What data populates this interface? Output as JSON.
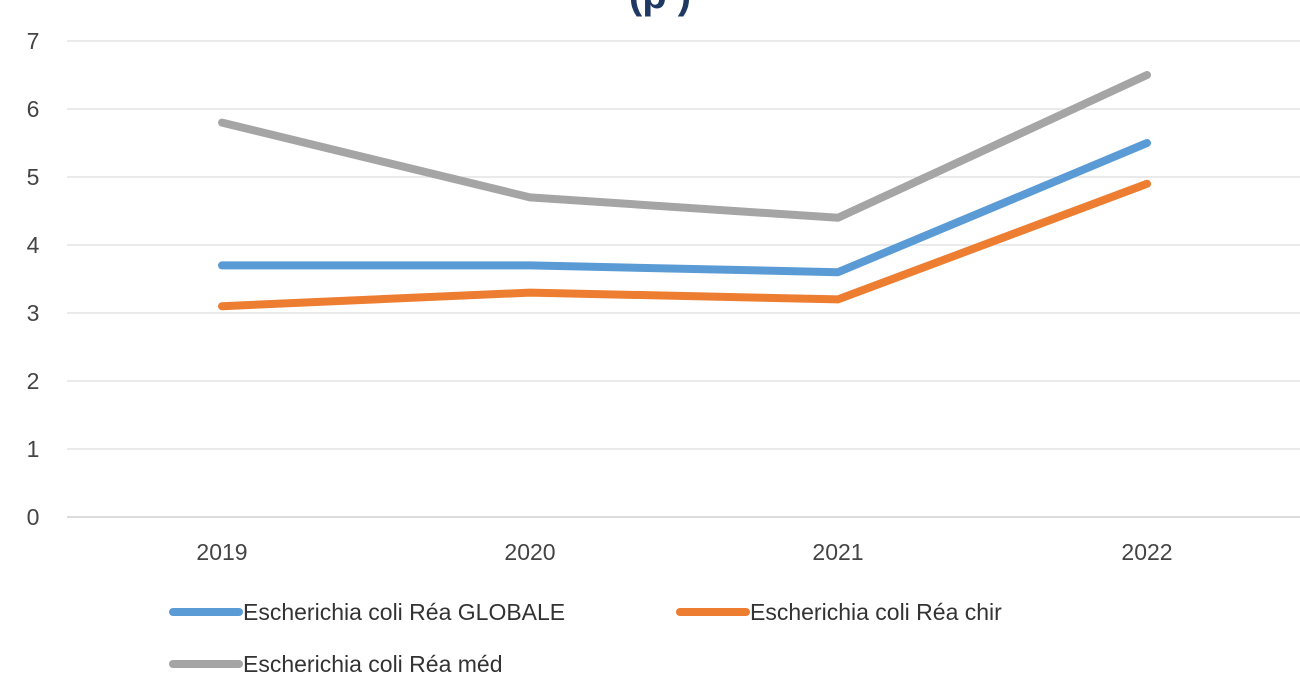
{
  "chart_data": {
    "type": "line",
    "title": "(p                    )",
    "categories": [
      "2019",
      "2020",
      "2021",
      "2022"
    ],
    "y_ticks": [
      "0",
      "1",
      "2",
      "3",
      "4",
      "5",
      "6",
      "7"
    ],
    "ylim": [
      0,
      7
    ],
    "grid": true,
    "legend_position": "bottom",
    "series": [
      {
        "name": "Escherichia coli Réa GLOBALE",
        "color": "#5b9bd5",
        "values": [
          3.7,
          3.7,
          3.6,
          5.5
        ]
      },
      {
        "name": "Escherichia coli Réa chir",
        "color": "#ed7d31",
        "values": [
          3.1,
          3.3,
          3.2,
          4.9
        ]
      },
      {
        "name": "Escherichia coli Réa méd",
        "color": "#a5a5a5",
        "values": [
          5.8,
          4.7,
          4.4,
          6.5
        ]
      }
    ]
  }
}
